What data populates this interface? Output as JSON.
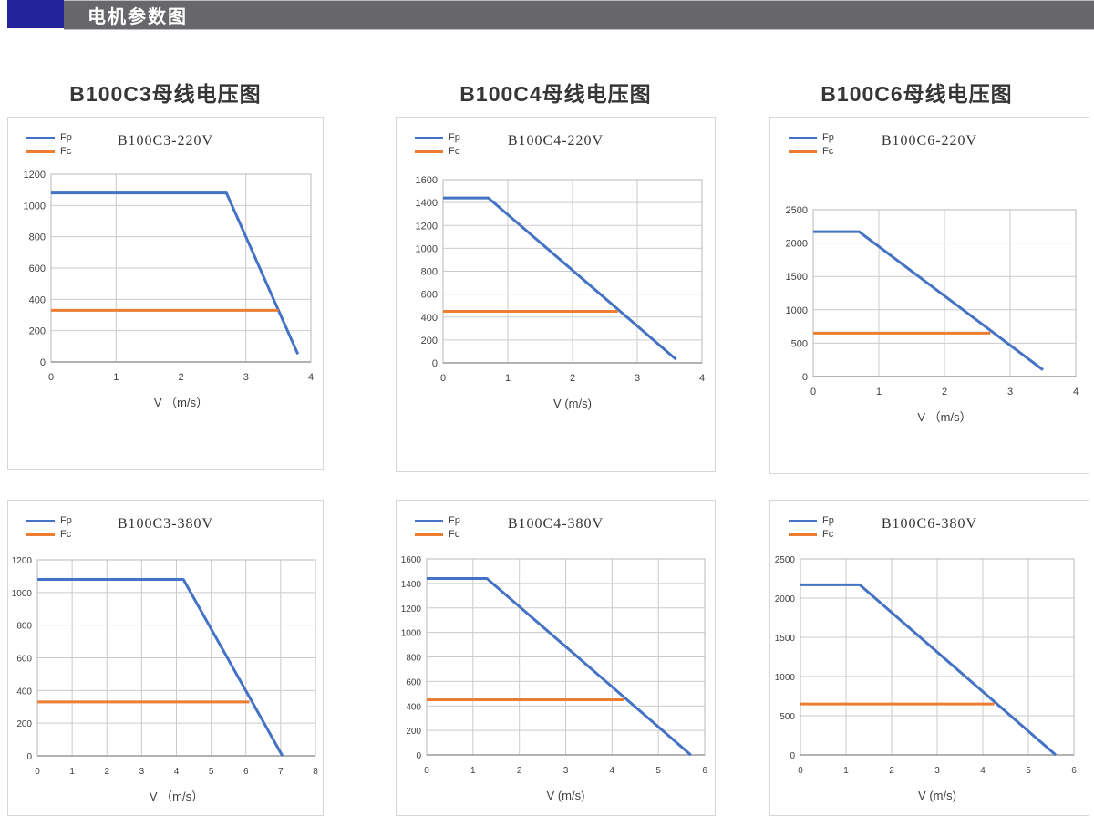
{
  "header": {
    "title": "电机参数图",
    "accent_color": "#23239b",
    "bar_color": "#67676b"
  },
  "section_titles": [
    "B100C3母线电压图",
    "B100C4母线电压图",
    "B100C6母线电压图"
  ],
  "colors": {
    "fp": "#4472C4",
    "fc": "#ED7D31",
    "grid": "#cbcbcb",
    "plot_border": "#b8b8b8",
    "axis": "#9a9a9a"
  },
  "chart_data": [
    {
      "type": "line",
      "title": "B100C3-220V",
      "xlabel": "V （m/s）",
      "xlim": [
        0,
        4
      ],
      "xticks": [
        0,
        1,
        2,
        3,
        4
      ],
      "ylim": [
        0,
        1200
      ],
      "yticks": [
        0,
        200,
        400,
        600,
        800,
        1000,
        1200
      ],
      "grid": true,
      "legend_position": "top-left",
      "series": [
        {
          "name": "Fp",
          "color": "#4472C4",
          "points": [
            [
              0,
              1080
            ],
            [
              2.7,
              1080
            ],
            [
              3.8,
              50
            ]
          ]
        },
        {
          "name": "Fc",
          "color": "#ED7D31",
          "points": [
            [
              0,
              330
            ],
            [
              3.5,
              330
            ]
          ]
        }
      ]
    },
    {
      "type": "line",
      "title": "B100C4-220V",
      "xlabel": "V (m/s)",
      "xlim": [
        0,
        4
      ],
      "xticks": [
        0,
        1,
        2,
        3,
        4
      ],
      "ylim": [
        0,
        1600
      ],
      "yticks": [
        0,
        200,
        400,
        600,
        800,
        1000,
        1200,
        1400,
        1600
      ],
      "grid": true,
      "legend_position": "top-left",
      "series": [
        {
          "name": "Fp",
          "color": "#4472C4",
          "points": [
            [
              0,
              1440
            ],
            [
              0.7,
              1440
            ],
            [
              3.6,
              30
            ]
          ]
        },
        {
          "name": "Fc",
          "color": "#ED7D31",
          "points": [
            [
              0,
              450
            ],
            [
              2.7,
              450
            ]
          ]
        }
      ]
    },
    {
      "type": "line",
      "title": "B100C6-220V",
      "xlabel": "V （m/s）",
      "xlim": [
        0,
        4
      ],
      "xticks": [
        0,
        1,
        2,
        3,
        4
      ],
      "ylim": [
        0,
        2500
      ],
      "yticks": [
        0,
        500,
        1000,
        1500,
        2000,
        2500
      ],
      "grid": true,
      "legend_position": "top-left",
      "series": [
        {
          "name": "Fp",
          "color": "#4472C4",
          "points": [
            [
              0,
              2170
            ],
            [
              0.7,
              2170
            ],
            [
              3.5,
              100
            ]
          ]
        },
        {
          "name": "Fc",
          "color": "#ED7D31",
          "points": [
            [
              0,
              650
            ],
            [
              2.7,
              650
            ]
          ]
        }
      ]
    },
    {
      "type": "line",
      "title": "B100C3-380V",
      "xlabel": "V （m/s）",
      "xlim": [
        0,
        8
      ],
      "xticks": [
        0,
        1,
        2,
        3,
        4,
        5,
        6,
        7,
        8
      ],
      "ylim": [
        0,
        1200
      ],
      "yticks": [
        0,
        200,
        400,
        600,
        800,
        1000,
        1200
      ],
      "grid": true,
      "legend_position": "top-left",
      "series": [
        {
          "name": "Fp",
          "color": "#4472C4",
          "points": [
            [
              0,
              1080
            ],
            [
              4.2,
              1080
            ],
            [
              7.05,
              0
            ]
          ]
        },
        {
          "name": "Fc",
          "color": "#ED7D31",
          "points": [
            [
              0,
              330
            ],
            [
              6.1,
              330
            ]
          ]
        }
      ]
    },
    {
      "type": "line",
      "title": "B100C4-380V",
      "xlabel": "V (m/s)",
      "xlim": [
        0,
        6
      ],
      "xticks": [
        0,
        1,
        2,
        3,
        4,
        5,
        6
      ],
      "ylim": [
        0,
        1600
      ],
      "yticks": [
        0,
        200,
        400,
        600,
        800,
        1000,
        1200,
        1400,
        1600
      ],
      "grid": true,
      "legend_position": "top-left",
      "series": [
        {
          "name": "Fp",
          "color": "#4472C4",
          "points": [
            [
              0,
              1440
            ],
            [
              1.3,
              1440
            ],
            [
              5.7,
              0
            ]
          ]
        },
        {
          "name": "Fc",
          "color": "#ED7D31",
          "points": [
            [
              0,
              450
            ],
            [
              4.25,
              450
            ]
          ]
        }
      ]
    },
    {
      "type": "line",
      "title": "B100C6-380V",
      "xlabel": "V (m/s)",
      "xlim": [
        0,
        6
      ],
      "xticks": [
        0,
        1,
        2,
        3,
        4,
        5,
        6
      ],
      "ylim": [
        0,
        2500
      ],
      "yticks": [
        0,
        500,
        1000,
        1500,
        2000,
        2500
      ],
      "grid": true,
      "legend_position": "top-left",
      "series": [
        {
          "name": "Fp",
          "color": "#4472C4",
          "points": [
            [
              0,
              2170
            ],
            [
              1.3,
              2170
            ],
            [
              5.6,
              0
            ]
          ]
        },
        {
          "name": "Fc",
          "color": "#ED7D31",
          "points": [
            [
              0,
              650
            ],
            [
              4.25,
              650
            ]
          ]
        }
      ]
    }
  ]
}
